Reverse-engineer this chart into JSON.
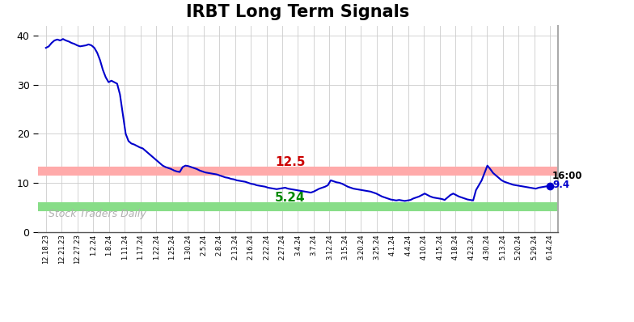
{
  "title": "IRBT Long Term Signals",
  "watermark": "Stock Traders Daily",
  "red_line": 12.5,
  "green_line": 5.24,
  "last_label": "16:00",
  "last_value": 9.4,
  "ylim": [
    0,
    42
  ],
  "yticks": [
    0,
    10,
    20,
    30,
    40
  ],
  "x_labels": [
    "12.18.23",
    "12.21.23",
    "12.27.23",
    "1.2.24",
    "1.8.24",
    "1.11.24",
    "1.17.24",
    "1.22.24",
    "1.25.24",
    "1.30.24",
    "2.5.24",
    "2.8.24",
    "2.13.24",
    "2.16.24",
    "2.22.24",
    "2.27.24",
    "3.4.24",
    "3.7.24",
    "3.12.24",
    "3.15.24",
    "3.20.24",
    "3.25.24",
    "4.1.24",
    "4.4.24",
    "4.10.24",
    "4.15.24",
    "4.18.24",
    "4.23.24",
    "4.30.24",
    "5.13.24",
    "5.20.24",
    "5.29.24",
    "6.14.24"
  ],
  "y_values": [
    37.5,
    37.8,
    38.5,
    39.0,
    39.2,
    39.0,
    39.3,
    39.0,
    38.8,
    38.5,
    38.3,
    38.0,
    37.8,
    37.9,
    38.0,
    38.2,
    38.0,
    37.5,
    36.5,
    35.0,
    33.0,
    31.5,
    30.5,
    30.8,
    30.5,
    30.2,
    28.0,
    24.0,
    20.0,
    18.5,
    18.0,
    17.8,
    17.5,
    17.2,
    17.0,
    16.5,
    16.0,
    15.5,
    15.0,
    14.5,
    14.0,
    13.5,
    13.2,
    13.0,
    12.8,
    12.5,
    12.3,
    12.2,
    13.2,
    13.5,
    13.4,
    13.2,
    13.0,
    12.8,
    12.5,
    12.3,
    12.1,
    12.0,
    11.9,
    11.8,
    11.7,
    11.5,
    11.3,
    11.1,
    11.0,
    10.8,
    10.7,
    10.5,
    10.4,
    10.3,
    10.2,
    10.0,
    9.8,
    9.7,
    9.5,
    9.4,
    9.3,
    9.2,
    9.0,
    8.9,
    8.8,
    8.7,
    8.8,
    8.9,
    9.0,
    8.8,
    8.7,
    8.6,
    8.5,
    8.4,
    8.3,
    8.2,
    8.1,
    8.0,
    8.2,
    8.5,
    8.8,
    9.0,
    9.2,
    9.5,
    10.5,
    10.3,
    10.1,
    10.0,
    9.8,
    9.5,
    9.2,
    9.0,
    8.8,
    8.7,
    8.6,
    8.5,
    8.4,
    8.3,
    8.2,
    8.0,
    7.8,
    7.5,
    7.2,
    7.0,
    6.8,
    6.6,
    6.5,
    6.4,
    6.5,
    6.4,
    6.3,
    6.4,
    6.5,
    6.8,
    7.0,
    7.2,
    7.5,
    7.8,
    7.5,
    7.2,
    7.0,
    6.9,
    6.8,
    6.7,
    6.5,
    7.0,
    7.5,
    7.8,
    7.5,
    7.2,
    7.0,
    6.8,
    6.6,
    6.5,
    6.4,
    8.5,
    9.5,
    10.5,
    12.0,
    13.5,
    12.8,
    12.0,
    11.5,
    11.0,
    10.5,
    10.2,
    10.0,
    9.8,
    9.6,
    9.5,
    9.4,
    9.3,
    9.2,
    9.1,
    9.0,
    8.9,
    8.8,
    9.0,
    9.1,
    9.2,
    9.3,
    9.4
  ],
  "line_color": "#0000cc",
  "red_color": "#cc0000",
  "red_line_color": "#ffaaaa",
  "green_color": "#008800",
  "green_line_color": "#88dd88",
  "watermark_color": "#b0b0b0",
  "background_color": "#ffffff",
  "grid_color": "#cccccc",
  "title_fontsize": 15,
  "axis_right_color": "#aaaaaa"
}
